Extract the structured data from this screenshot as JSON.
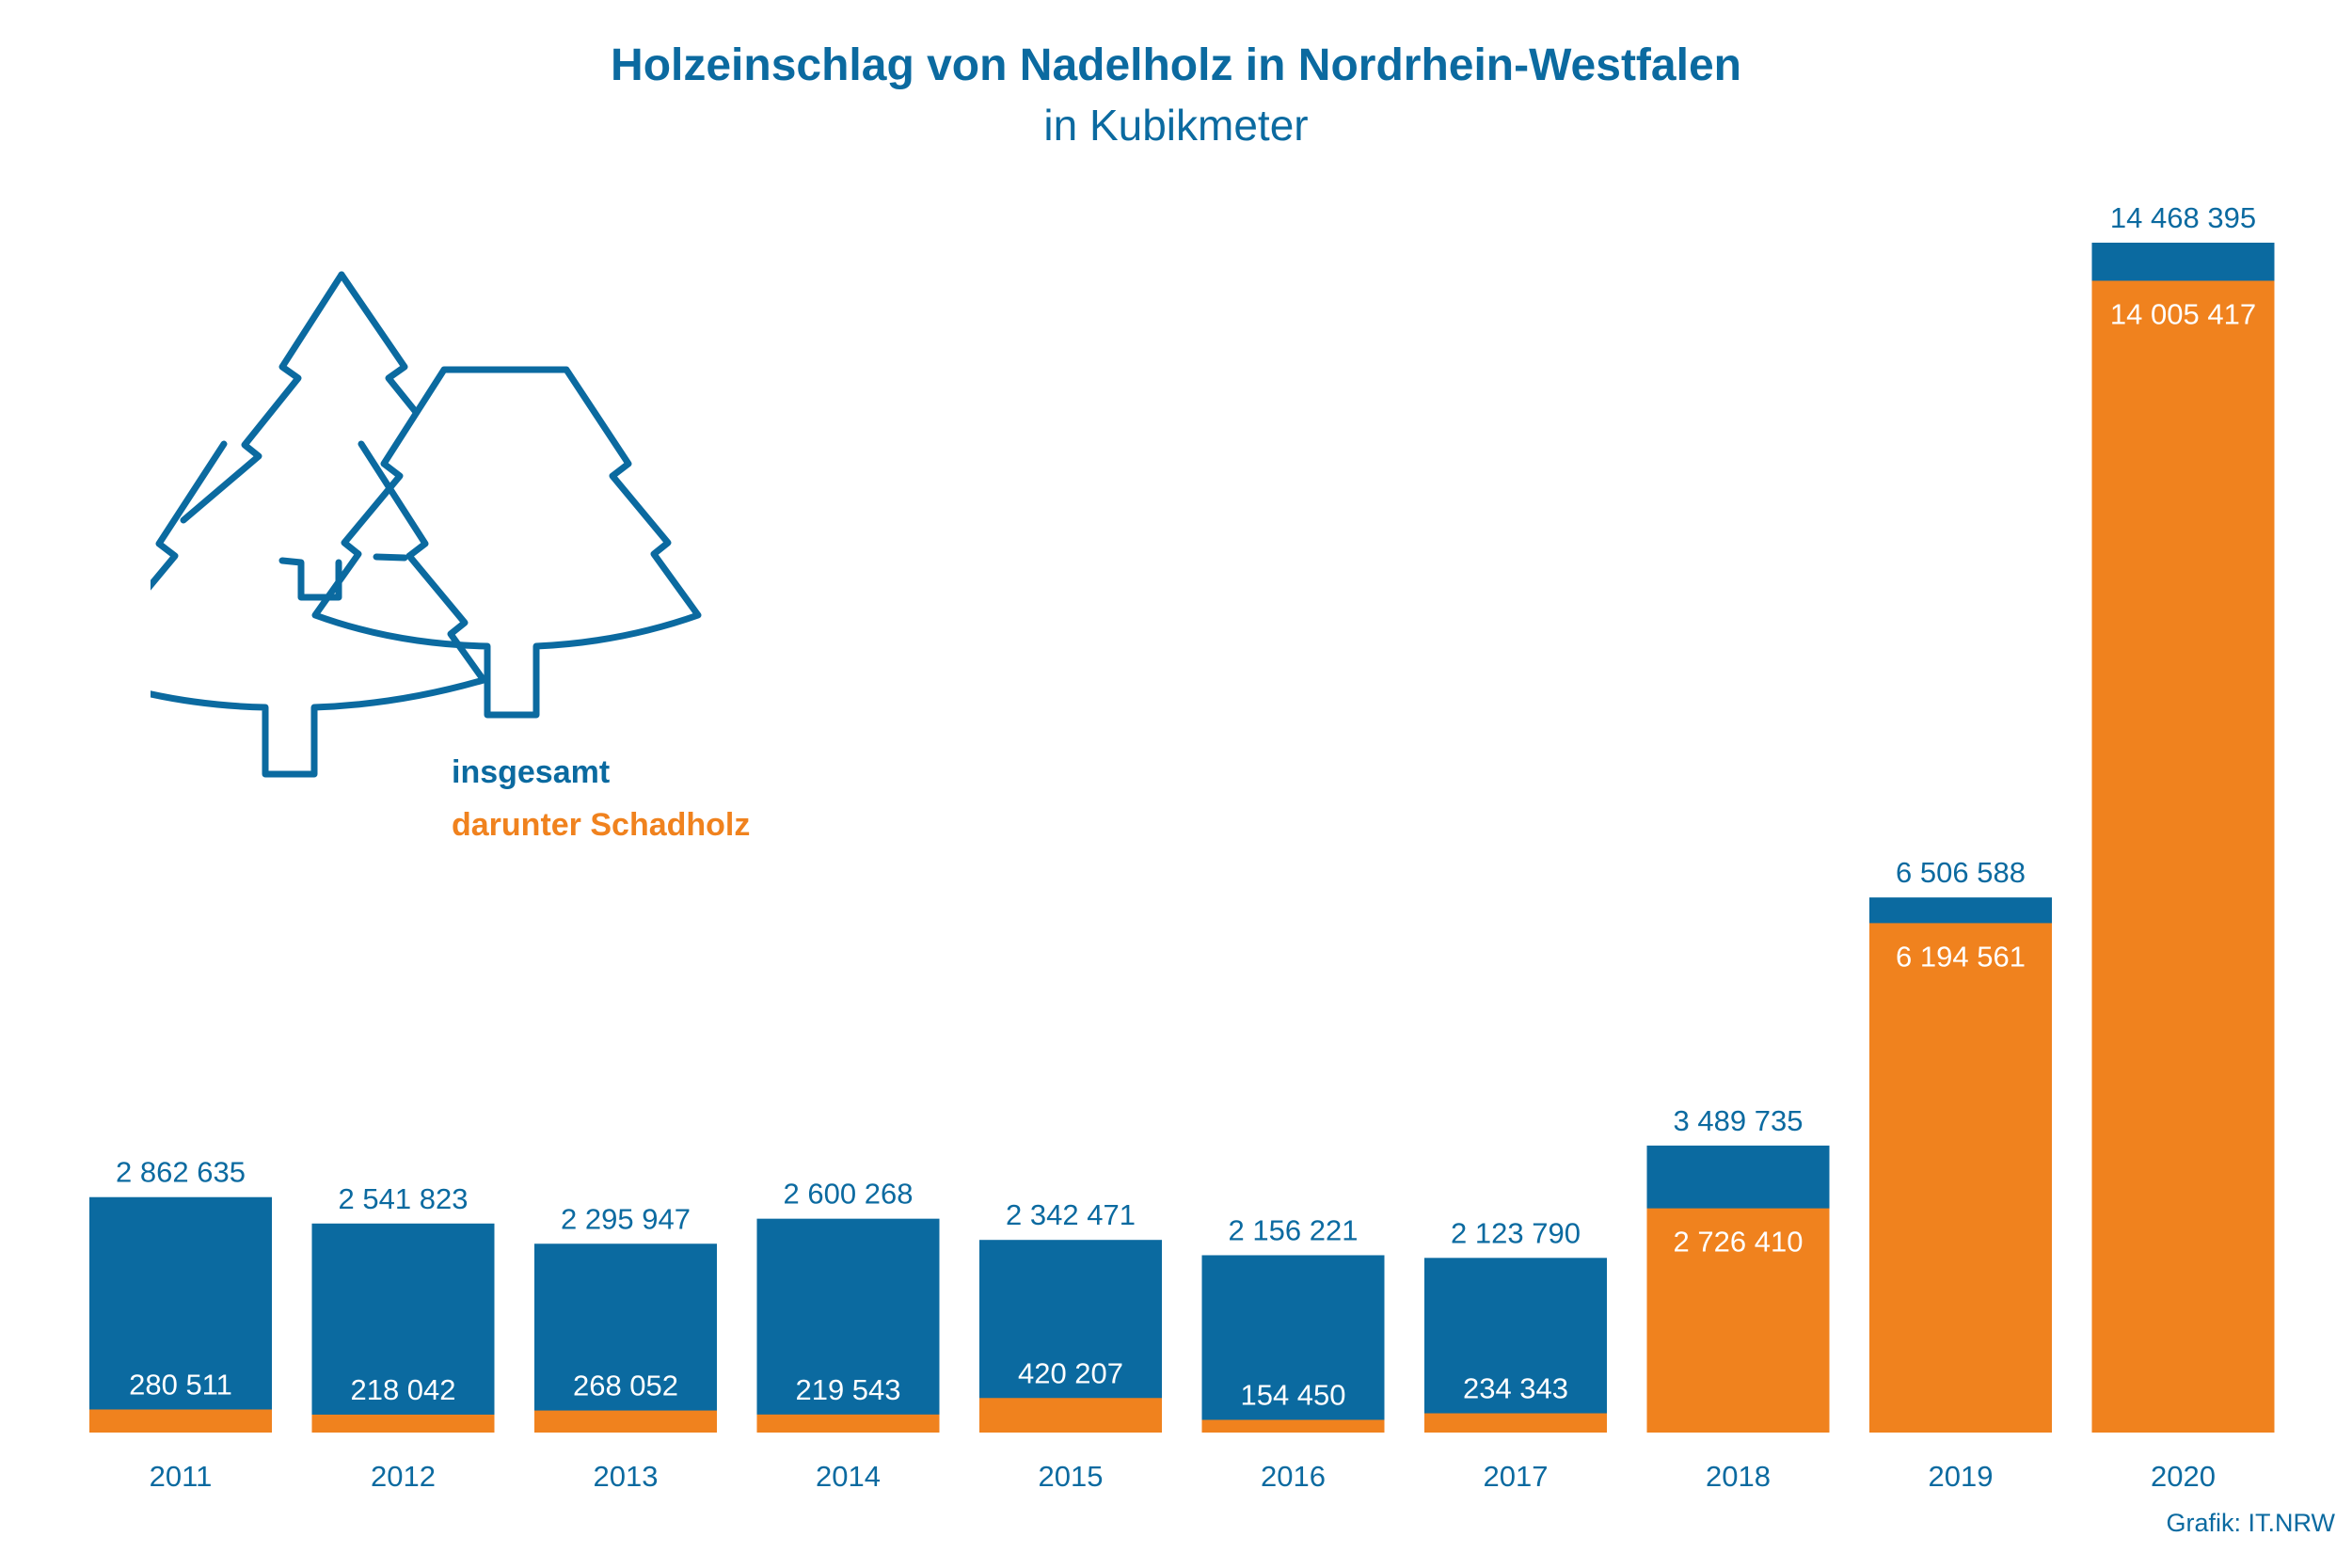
{
  "title": "Holzeinschlag von Nadelholz in Nordrhein-Westfalen",
  "subtitle": "in Kubikmeter",
  "legend": {
    "total": "insgesamt",
    "damaged": "darunter Schadholz"
  },
  "source": "Grafik: IT.NRW",
  "icon": "conifer-trees-icon",
  "colors": {
    "total": "#0b6aa0",
    "damaged": "#f0821e",
    "text_dark": "#0b6aa0",
    "axis_label": "#0b6aa0"
  },
  "chart_data": {
    "type": "bar",
    "title": "Holzeinschlag von Nadelholz in Nordrhein-Westfalen",
    "subtitle": "in Kubikmeter",
    "xlabel": "",
    "ylabel": "",
    "categories": [
      "2011",
      "2012",
      "2013",
      "2014",
      "2015",
      "2016",
      "2017",
      "2018",
      "2019",
      "2020"
    ],
    "ylim": [
      0,
      14468395
    ],
    "grid": false,
    "legend_position": "top-left",
    "series": [
      {
        "name": "insgesamt",
        "values": [
          2862635,
          2541823,
          2295947,
          2600268,
          2342471,
          2156221,
          2123790,
          3489735,
          6506588,
          14468395
        ],
        "labels": [
          "2 862 635",
          "2 541 823",
          "2 295 947",
          "2 600 268",
          "2 342 471",
          "2 156 221",
          "2 123 790",
          "3 489 735",
          "6 506 588",
          "14 468 395"
        ]
      },
      {
        "name": "darunter Schadholz",
        "values": [
          280511,
          218042,
          268052,
          219543,
          420207,
          154450,
          234343,
          2726410,
          6194561,
          14005417
        ],
        "labels": [
          "280 511",
          "218 042",
          "268 052",
          "219 543",
          "420 207",
          "154 450",
          "234 343",
          "2 726 410",
          "6 194 561",
          "14 005 417"
        ]
      }
    ]
  }
}
